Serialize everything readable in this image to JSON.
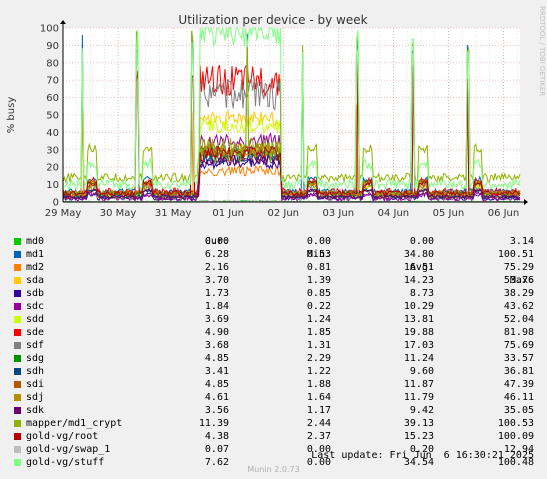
{
  "chart_data": {
    "type": "line",
    "title": "Utilization per device - by week",
    "ylabel": "% busy",
    "ylim": [
      0,
      100
    ],
    "yticks": [
      0,
      10,
      20,
      30,
      40,
      50,
      60,
      70,
      80,
      90,
      100
    ],
    "xlim": [
      0,
      8.3
    ],
    "xtick_labels": [
      "29 May",
      "30 May",
      "31 May",
      "01 Jun",
      "02 Jun",
      "03 Jun",
      "04 Jun",
      "05 Jun",
      "06 Jun"
    ],
    "grid": true,
    "watermark": "RRDTOOL / TOBI OETIKER",
    "series": [
      {
        "name": "md0",
        "color": "#00cc00"
      },
      {
        "name": "md1",
        "color": "#0066b3"
      },
      {
        "name": "md2",
        "color": "#ff8000"
      },
      {
        "name": "sda",
        "color": "#ffcc00"
      },
      {
        "name": "sdb",
        "color": "#330099"
      },
      {
        "name": "sdc",
        "color": "#990099"
      },
      {
        "name": "sdd",
        "color": "#ccff00"
      },
      {
        "name": "sde",
        "color": "#ff0000"
      },
      {
        "name": "sdf",
        "color": "#808080"
      },
      {
        "name": "sdg",
        "color": "#008f00"
      },
      {
        "name": "sdh",
        "color": "#00487d"
      },
      {
        "name": "sdi",
        "color": "#b35a00"
      },
      {
        "name": "sdj",
        "color": "#b38f00"
      },
      {
        "name": "sdk",
        "color": "#6b006b"
      },
      {
        "name": "mapper/md1_crypt",
        "color": "#8fb300"
      },
      {
        "name": "gold-vg/root",
        "color": "#b30000"
      },
      {
        "name": "gold-vg/swap_1",
        "color": "#bebebe"
      },
      {
        "name": "gold-vg/stuff",
        "color": "#80ff80"
      }
    ]
  },
  "legend": {
    "headers": {
      "cur": "Cur:",
      "min": "Min:",
      "avg": "Avg:",
      "max": "Max:"
    },
    "rows": [
      {
        "name": "md0",
        "cur": "0.00",
        "min": "0.00",
        "avg": "0.00",
        "max": "3.14"
      },
      {
        "name": "md1",
        "cur": "6.28",
        "min": "0.53",
        "avg": "34.80",
        "max": "100.51"
      },
      {
        "name": "md2",
        "cur": "2.16",
        "min": "0.81",
        "avg": "16.51",
        "max": "75.29"
      },
      {
        "name": "sda",
        "cur": "3.70",
        "min": "1.39",
        "avg": "14.23",
        "max": "53.76"
      },
      {
        "name": "sdb",
        "cur": "1.73",
        "min": "0.85",
        "avg": "8.73",
        "max": "38.29"
      },
      {
        "name": "sdc",
        "cur": "1.84",
        "min": "0.22",
        "avg": "10.29",
        "max": "43.62"
      },
      {
        "name": "sdd",
        "cur": "3.69",
        "min": "1.24",
        "avg": "13.81",
        "max": "52.04"
      },
      {
        "name": "sde",
        "cur": "4.90",
        "min": "1.85",
        "avg": "19.88",
        "max": "81.98"
      },
      {
        "name": "sdf",
        "cur": "3.68",
        "min": "1.31",
        "avg": "17.03",
        "max": "75.69"
      },
      {
        "name": "sdg",
        "cur": "4.85",
        "min": "2.29",
        "avg": "11.24",
        "max": "33.57"
      },
      {
        "name": "sdh",
        "cur": "3.41",
        "min": "1.22",
        "avg": "9.60",
        "max": "36.81"
      },
      {
        "name": "sdi",
        "cur": "4.85",
        "min": "1.88",
        "avg": "11.87",
        "max": "47.39"
      },
      {
        "name": "sdj",
        "cur": "4.61",
        "min": "1.64",
        "avg": "11.79",
        "max": "46.11"
      },
      {
        "name": "sdk",
        "cur": "3.56",
        "min": "1.17",
        "avg": "9.42",
        "max": "35.05"
      },
      {
        "name": "mapper/md1_crypt",
        "cur": "11.39",
        "min": "2.44",
        "avg": "39.13",
        "max": "100.53"
      },
      {
        "name": "gold-vg/root",
        "cur": "4.38",
        "min": "2.37",
        "avg": "15.23",
        "max": "100.09"
      },
      {
        "name": "gold-vg/swap_1",
        "cur": "0.07",
        "min": "0.00",
        "avg": "0.20",
        "max": "12.94"
      },
      {
        "name": "gold-vg/stuff",
        "cur": "7.62",
        "min": "0.00",
        "avg": "34.54",
        "max": "100.48"
      }
    ]
  },
  "footer": {
    "last_update": "Last update: Fri Jun  6 16:30:21 2025",
    "version": "Munin 2.0.73"
  }
}
